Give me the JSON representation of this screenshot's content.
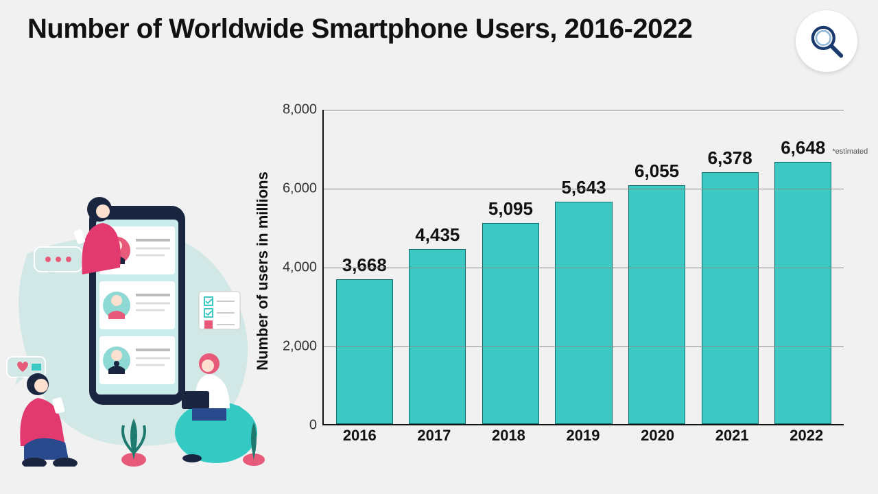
{
  "title": "Number of Worldwide Smartphone Users, 2016-2022",
  "icon_name": "search-icon",
  "chart": {
    "type": "bar",
    "y_axis_label": "Number of users in millions",
    "ylim": [
      0,
      8000
    ],
    "ytick_step": 2000,
    "y_ticks": [
      0,
      2000,
      4000,
      6000,
      8000
    ],
    "y_tick_labels": [
      "0",
      "2,000",
      "4,000",
      "6,000",
      "8,000"
    ],
    "categories": [
      "2016",
      "2017",
      "2018",
      "2019",
      "2020",
      "2021",
      "2022"
    ],
    "values": [
      3668,
      4435,
      5095,
      5643,
      6055,
      6378,
      6648
    ],
    "value_labels": [
      "3,668",
      "4,435",
      "5,095",
      "5,643",
      "6,055",
      "6,378",
      "6,648"
    ],
    "notes": [
      "",
      "",
      "",
      "",
      "",
      "",
      "*estimated"
    ],
    "bar_color": "#3cc9c3",
    "bar_border_color": "#0e6b68",
    "grid_color": "#888888",
    "axis_color": "#111111",
    "background_color": "#f1f1f1",
    "title_fontsize": 40,
    "value_label_fontsize": 26,
    "axis_label_fontsize": 22,
    "tick_label_fontsize": 20,
    "bar_width_ratio": 0.78
  },
  "illustration": {
    "bg_blob_color": "#d1e8e6",
    "phone_color": "#1a2640",
    "phone_screen_color": "#c9ecea",
    "avatar_colors": [
      "#e85a7a",
      "#e85a7a",
      "#1a2640"
    ],
    "person_colors": {
      "left_shirt": "#e23a6e",
      "left_pants": "#2a4a8e",
      "middle_shirt": "#e23a6e",
      "middle_pants": "#2a4a8e",
      "right_shirt": "#ffffff",
      "right_hair": "#e85a7a",
      "chair": "#35c9c3"
    },
    "bubble_colors": {
      "dots_bubble": "#d1e8e6",
      "dots": "#e85a7a",
      "heart_bubble": "#d1e8e6",
      "heart": "#e85a7a",
      "checklist_bg": "#ffffff",
      "check": "#3cc9c3",
      "check_box": "#e85a7a"
    }
  }
}
